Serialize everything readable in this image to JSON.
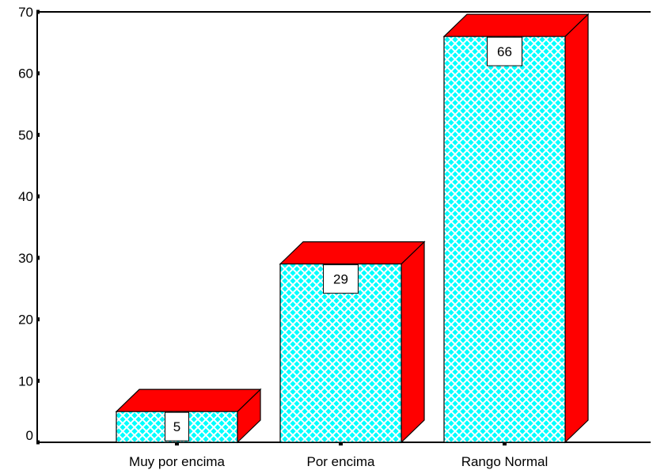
{
  "chart_data": {
    "type": "bar",
    "style": "3d",
    "categories": [
      "Muy por encima",
      "Por encima",
      "Rango Normal"
    ],
    "values": [
      5,
      29,
      66
    ],
    "data_labels": [
      "5",
      "29",
      "66"
    ],
    "title": "",
    "xlabel": "",
    "ylabel": "",
    "ylim": [
      0,
      70
    ],
    "yticks": [
      0,
      10,
      20,
      30,
      40,
      50,
      60,
      70
    ],
    "grid": false,
    "legend": "none",
    "colors": {
      "bar_front": "#00FFFF",
      "bar_pattern": "#FFFFFF",
      "bar_side": "#FF0000",
      "bar_top": "#FF0000",
      "outline": "#000000"
    }
  }
}
